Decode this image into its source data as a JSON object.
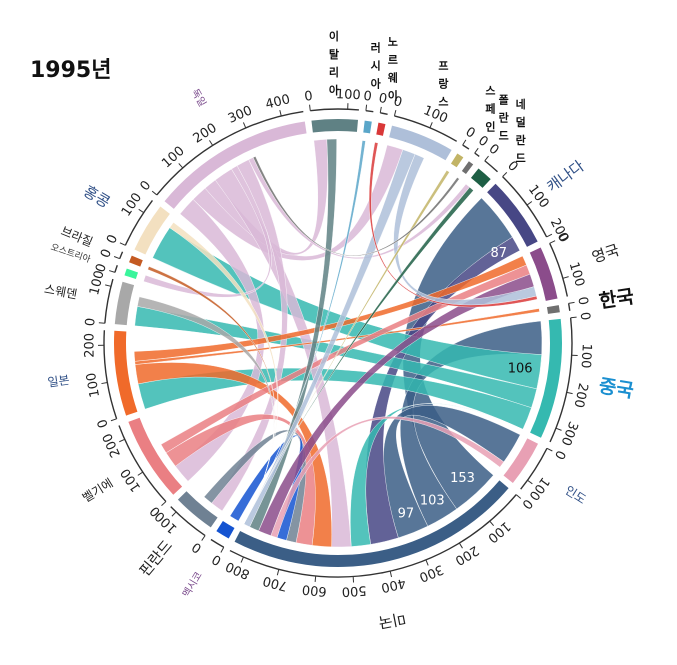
{
  "chart_data": {
    "type": "chord",
    "title": "1995년",
    "groups": [
      {
        "name": "한국",
        "total": 20,
        "color": "#6f6f6f",
        "label_style": "big-dark"
      },
      {
        "name": "중국",
        "total": 340,
        "color": "#35b9b0",
        "label_style": "big-blue"
      },
      {
        "name": "인도",
        "total": 130,
        "color": "#e8a0b4",
        "label_style": "small-blue"
      },
      {
        "name": "미국",
        "total": 840,
        "color": "#3b5e86",
        "label_style": "mid"
      },
      {
        "name": "멕시코",
        "total": 40,
        "color": "#1453d1",
        "label_style": "tiny-purple"
      },
      {
        "name": "핀란드",
        "total": 120,
        "color": "#6f8193",
        "label_style": "mid"
      },
      {
        "name": "벨기에",
        "total": 240,
        "color": "#ea7f83",
        "label_style": "small"
      },
      {
        "name": "일본",
        "total": 240,
        "color": "#f06a2a",
        "label_style": "small-blue"
      },
      {
        "name": "스웨덴",
        "total": 120,
        "color": "#a8a8a8",
        "label_style": "small"
      },
      {
        "name": "오스트리아",
        "total": 20,
        "color": "#3af59c",
        "label_style": "tiny"
      },
      {
        "name": "브라질",
        "total": 20,
        "color": "#c45a22",
        "label_style": "small"
      },
      {
        "name": "홍콩",
        "total": 140,
        "color": "#f3e0c0",
        "label_style": "mid-blue"
      },
      {
        "name": "독일",
        "total": 460,
        "color": "#d9b8d7",
        "label_style": "tiny-purple"
      },
      {
        "name": "이탈리아",
        "total": 130,
        "color": "#5f8184",
        "label_style": "vertical"
      },
      {
        "name": "러시아",
        "total": 20,
        "color": "#5aa6c9",
        "label_style": "vertical"
      },
      {
        "name": "노르웨이",
        "total": 20,
        "color": "#d93838",
        "label_style": "vertical"
      },
      {
        "name": "프랑스",
        "total": 180,
        "color": "#aebfd9",
        "label_style": "vertical"
      },
      {
        "name": "스페인",
        "total": 20,
        "color": "#c2b466",
        "label_style": "vertical"
      },
      {
        "name": "폴란드",
        "total": 15,
        "color": "#6f6f6f",
        "label_style": "vertical"
      },
      {
        "name": "네덜란드",
        "total": 45,
        "color": "#1e5f45",
        "label_style": "vertical"
      },
      {
        "name": "캐나다",
        "total": 200,
        "color": "#474785",
        "label_style": "mid-blue"
      },
      {
        "name": "영국",
        "total": 150,
        "color": "#8b4c8b",
        "label_style": "mid"
      }
    ],
    "ticks": {
      "한국": [
        "0"
      ],
      "중국": [
        "0",
        "100",
        "200",
        "300"
      ],
      "인도": [
        "0",
        "100"
      ],
      "미국": [
        "0",
        "100",
        "200",
        "300",
        "400",
        "500",
        "600",
        "700",
        "800"
      ],
      "멕시코": [
        "0"
      ],
      "핀란드": [
        "0",
        "100"
      ],
      "벨기에": [
        "0",
        "100",
        "200"
      ],
      "일본": [
        "0",
        "100",
        "200"
      ],
      "스웨덴": [
        "0",
        "100"
      ],
      "오스트리아": [
        "0"
      ],
      "브라질": [
        "0"
      ],
      "홍콩": [
        "0",
        "100"
      ],
      "독일": [
        "0",
        "100",
        "200",
        "300",
        "400"
      ],
      "이탈리아": [
        "0",
        "100"
      ],
      "러시아": [
        "0"
      ],
      "노르웨이": [
        "0"
      ],
      "프랑스": [
        "0",
        "100"
      ],
      "스페인": [
        "0"
      ],
      "폴란드": [
        "0"
      ],
      "네덜란드": [
        "0"
      ],
      "캐나다": [
        "0",
        "100",
        "200"
      ],
      "영국": [
        "0",
        "100"
      ]
    },
    "flows": [
      {
        "from": "미국",
        "to": "캐나다",
        "value": 153
      },
      {
        "from": "미국",
        "to": "중국",
        "value": 103
      },
      {
        "from": "미국",
        "to": "인도",
        "value": 97
      },
      {
        "from": "캐나다",
        "to": "미국",
        "value": 87
      },
      {
        "from": "중국",
        "to": "홍콩",
        "value": 106
      },
      {
        "from": "중국",
        "to": "스웨덴",
        "value": 60
      },
      {
        "from": "중국",
        "to": "일본",
        "value": 80
      },
      {
        "from": "중국",
        "to": "미국",
        "value": 60
      },
      {
        "from": "독일",
        "to": "벨기에",
        "value": 60
      },
      {
        "from": "독일",
        "to": "프랑스",
        "value": 50
      },
      {
        "from": "독일",
        "to": "이탈리아",
        "value": 40
      },
      {
        "from": "독일",
        "to": "미국",
        "value": 60
      },
      {
        "from": "독일",
        "to": "오스트리아",
        "value": 20
      },
      {
        "from": "독일",
        "to": "핀란드",
        "value": 40
      },
      {
        "from": "독일",
        "to": "네덜란드",
        "value": 15
      },
      {
        "from": "일본",
        "to": "미국",
        "value": 60
      },
      {
        "from": "일본",
        "to": "한국",
        "value": 10
      },
      {
        "from": "일본",
        "to": "영국",
        "value": 30
      },
      {
        "from": "벨기에",
        "to": "미국",
        "value": 50
      },
      {
        "from": "벨기에",
        "to": "영국",
        "value": 30
      },
      {
        "from": "핀란드",
        "to": "미국",
        "value": 30
      },
      {
        "from": "멕시코",
        "to": "미국",
        "value": 30
      },
      {
        "from": "인도",
        "to": "미국",
        "value": 20
      },
      {
        "from": "영국",
        "to": "미국",
        "value": 40
      },
      {
        "from": "이탈리아",
        "to": "미국",
        "value": 30
      },
      {
        "from": "프랑스",
        "to": "미국",
        "value": 40
      },
      {
        "from": "프랑스",
        "to": "영국",
        "value": 30
      },
      {
        "from": "러시아",
        "to": "미국",
        "value": 10
      },
      {
        "from": "노르웨이",
        "to": "영국",
        "value": 10
      },
      {
        "from": "스페인",
        "to": "미국",
        "value": 10
      },
      {
        "from": "브라질",
        "to": "미국",
        "value": 10
      },
      {
        "from": "스웨덴",
        "to": "미국",
        "value": 30
      },
      {
        "from": "홍콩",
        "to": "미국",
        "value": 20
      },
      {
        "from": "폴란드",
        "to": "독일",
        "value": 8
      },
      {
        "from": "네덜란드",
        "to": "미국",
        "value": 15
      }
    ],
    "flow_labels": [
      "153",
      "103",
      "97",
      "87",
      "106"
    ]
  }
}
